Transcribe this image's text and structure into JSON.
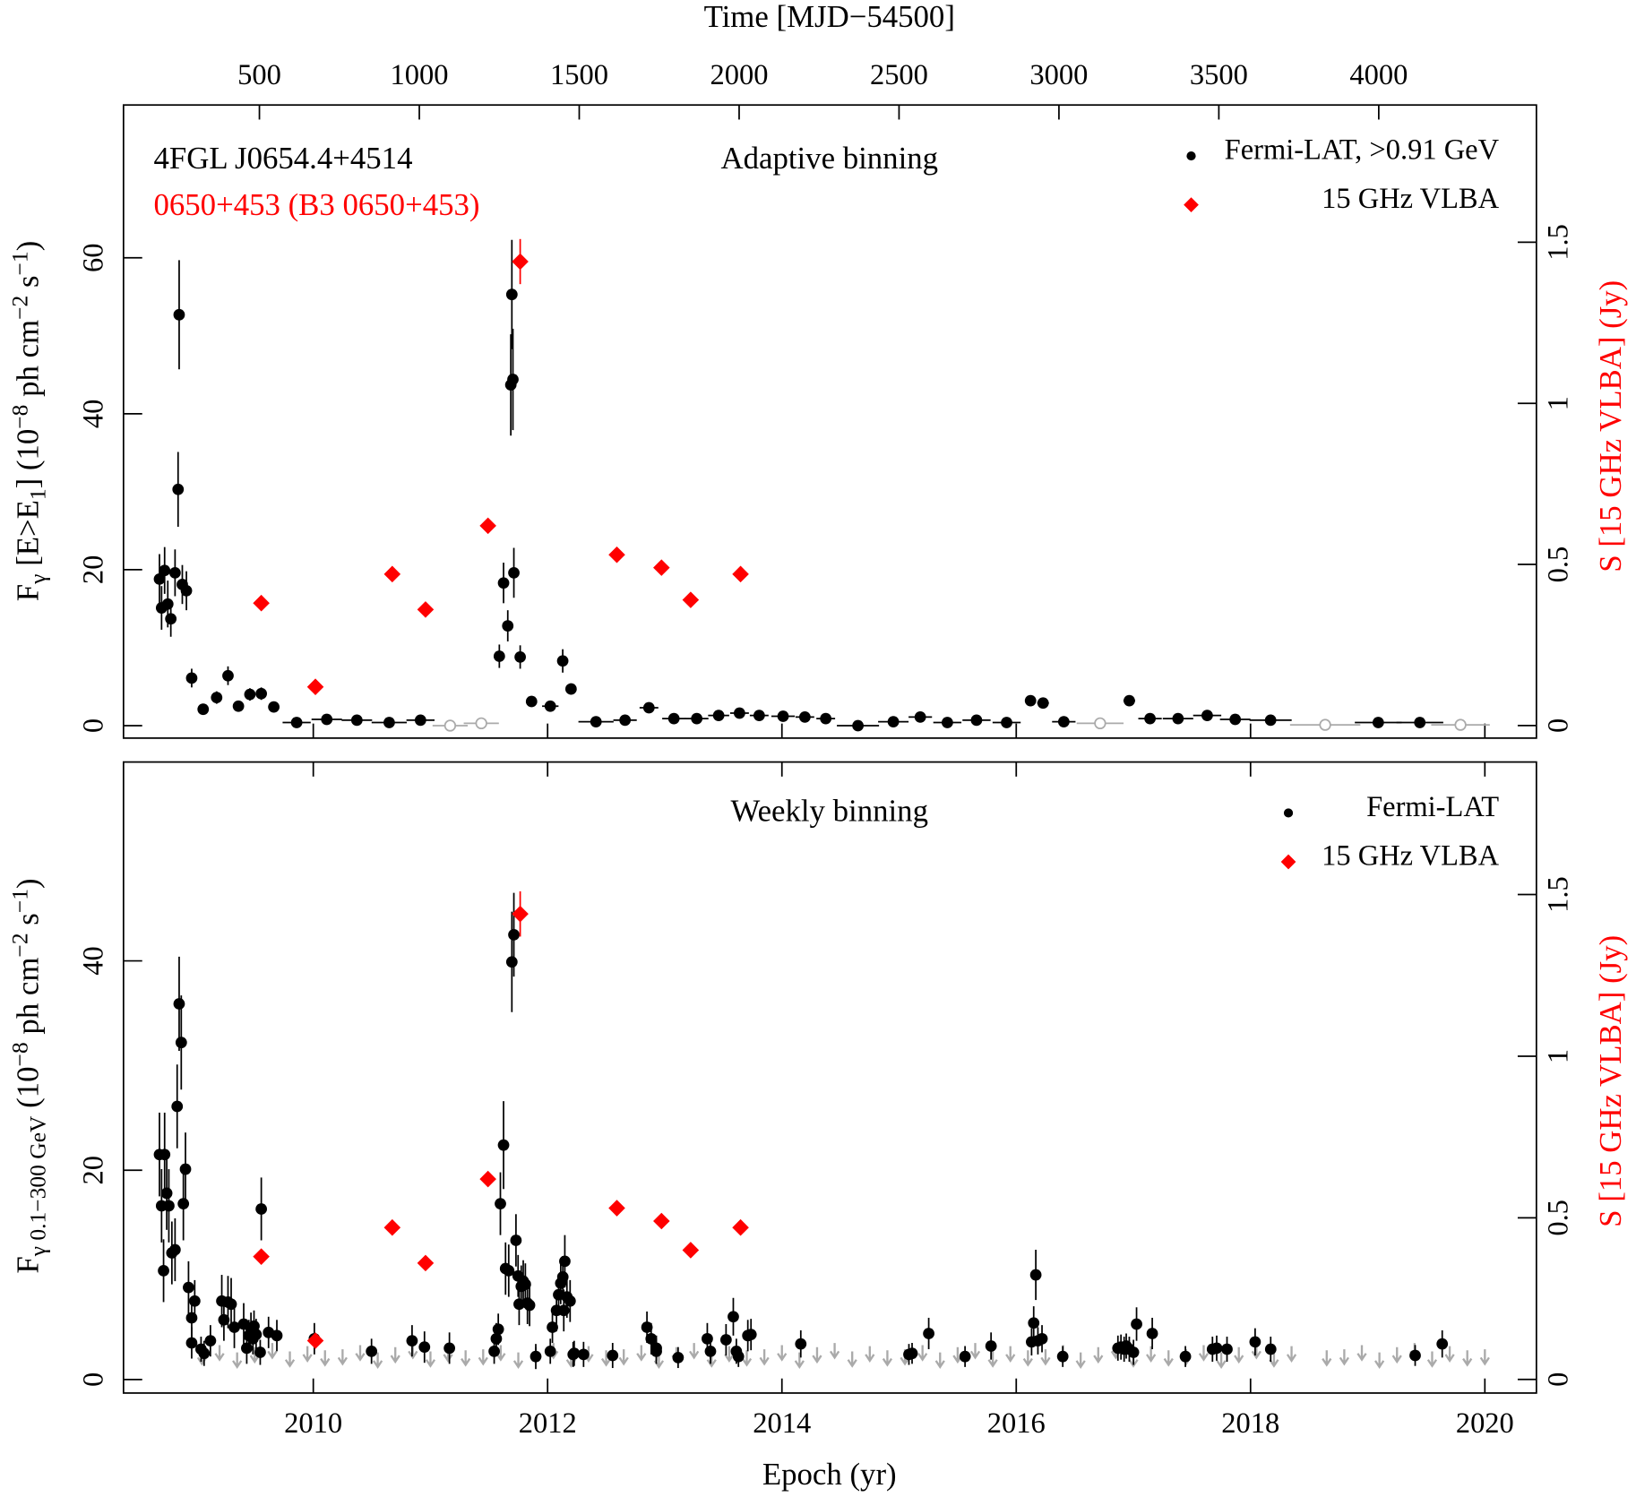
{
  "chart_data": [
    {
      "type": "scatter",
      "title": "Adaptive binning",
      "source_name": "4FGL J0654.4+4514",
      "source_alias": "0650+453 (B3 0650+453)",
      "x2label": "Time [MJD−54500]",
      "ylabel": [
        "F",
        "γ",
        " [E>E",
        "1",
        "] (10",
        "−8",
        " ph cm",
        "−2",
        " s",
        "−1",
        ")"
      ],
      "y2label": "S [15 GHz VLBA] (Jy)",
      "xlim": [
        2008.38,
        2020.44
      ],
      "xticks": [
        2010,
        2012,
        2014,
        2016,
        2018,
        2020
      ],
      "x2lim": [
        75,
        4493
      ],
      "x2ticks": [
        500,
        1000,
        1500,
        2000,
        2500,
        3000,
        3500,
        4000
      ],
      "ylim": [
        -1.6,
        79.6
      ],
      "yticks": [
        0,
        20,
        40,
        60
      ],
      "y2lim": [
        -0.039,
        1.926
      ],
      "y2ticks": [
        0,
        0.5,
        1,
        1.5
      ],
      "y2color": "#ff0000",
      "legend": "upper right",
      "series": [
        {
          "name": "Fermi-LAT, >0.91 GeV",
          "color": "#000000",
          "marker": "circle",
          "x": [
            2008.687,
            2008.705,
            2008.731,
            2008.758,
            2008.784,
            2008.82,
            2008.855,
            2008.846,
            2008.882,
            2008.917,
            2008.962,
            2009.06,
            2009.175,
            2009.272,
            2009.361,
            2009.459,
            2009.556,
            2009.663,
            2009.858,
            2010.115,
            2010.372,
            2010.648,
            2010.915,
            2011.588,
            2011.624,
            2011.66,
            2011.686,
            2011.695,
            2011.704,
            2011.712,
            2011.766,
            2011.863,
            2012.023,
            2012.129,
            2012.2,
            2012.413,
            2012.661,
            2012.865,
            2013.078,
            2013.273,
            2013.46,
            2013.638,
            2013.806,
            2014.01,
            2014.196,
            2014.374,
            2014.649,
            2014.951,
            2015.181,
            2015.412,
            2015.661,
            2015.918,
            2016.122,
            2016.229,
            2016.406,
            2016.965,
            2017.142,
            2017.381,
            2017.63,
            2017.869,
            2018.171,
            2019.09,
            2019.445
          ],
          "values": [
            18.8,
            15.1,
            19.9,
            15.6,
            13.7,
            19.6,
            52.7,
            30.3,
            18.1,
            17.3,
            6.1,
            2.1,
            3.6,
            6.4,
            2.5,
            4.0,
            4.1,
            2.4,
            0.4,
            0.8,
            0.7,
            0.4,
            0.7,
            8.9,
            18.3,
            12.8,
            43.7,
            55.3,
            44.4,
            19.6,
            8.8,
            3.1,
            2.5,
            8.3,
            4.7,
            0.5,
            0.7,
            2.3,
            0.9,
            0.9,
            1.3,
            1.6,
            1.3,
            1.2,
            1.1,
            0.9,
            0.0,
            0.5,
            1.1,
            0.4,
            0.7,
            0.4,
            3.2,
            2.9,
            0.5,
            3.2,
            0.9,
            0.9,
            1.3,
            0.8,
            0.7,
            0.4,
            0.4
          ],
          "errors": [
            3.2,
            2.8,
            3,
            3,
            2.3,
            3,
            7,
            4.8,
            2.5,
            2.5,
            1.2,
            0.6,
            0.8,
            1.2,
            0.7,
            0.8,
            0.8,
            0.6,
            0.2,
            0.2,
            0.2,
            0.15,
            0.2,
            1.5,
            2.6,
            2,
            6.5,
            7,
            6.5,
            3.2,
            1.5,
            0.7,
            0.5,
            1.5,
            0.7,
            0.2,
            0.2,
            0.4,
            0.2,
            0.2,
            0.3,
            0.3,
            0.3,
            0.3,
            0.3,
            0.3,
            0.1,
            0.2,
            0.3,
            0.2,
            0.2,
            0.2,
            0.6,
            0.6,
            0.2,
            0.6,
            0.3,
            0.3,
            0.3,
            0.3,
            0.2,
            0.1,
            0.1
          ],
          "xerr": [
            0.01,
            0.01,
            0.01,
            0.01,
            0.01,
            0.01,
            0.01,
            0.01,
            0.01,
            0.01,
            0.01,
            0.01,
            0.01,
            0.01,
            0.01,
            0.01,
            0.01,
            0.01,
            0.12,
            0.13,
            0.13,
            0.15,
            0.12,
            0.01,
            0.01,
            0.01,
            0.01,
            0.01,
            0.01,
            0.01,
            0.01,
            0.01,
            0.07,
            0.02,
            0.04,
            0.15,
            0.1,
            0.08,
            0.1,
            0.1,
            0.09,
            0.08,
            0.08,
            0.1,
            0.08,
            0.08,
            0.18,
            0.13,
            0.1,
            0.12,
            0.12,
            0.12,
            0.04,
            0.05,
            0.1,
            0.05,
            0.1,
            0.13,
            0.12,
            0.13,
            0.18,
            0.2,
            0.2
          ]
        },
        {
          "name": "15 GHz VLBA",
          "color": "#ff0000",
          "marker": "diamond",
          "axis": "y2",
          "x": [
            2009.556,
            2010.018,
            2010.674,
            2010.958,
            2011.491,
            2011.766,
            2012.591,
            2012.972,
            2013.221,
            2013.647
          ],
          "values": [
            0.38,
            0.12,
            0.47,
            0.36,
            0.62,
            1.44,
            0.53,
            0.49,
            0.39,
            0.47
          ],
          "errors": [
            0.01,
            0.01,
            0.01,
            0.01,
            0.02,
            0.07,
            0.01,
            0.01,
            0.01,
            0.01
          ]
        }
      ],
      "upper_limits": {
        "color": "#aaaaaa",
        "marker": "circle-open",
        "x": [
          2011.168,
          2011.434,
          2016.716,
          2018.637,
          2019.792
        ],
        "values": [
          0.0,
          0.3,
          0.3,
          0.1,
          0.1
        ],
        "xerr": [
          0.15,
          0.15,
          0.2,
          0.3,
          0.25
        ]
      }
    },
    {
      "type": "scatter",
      "title": "Weekly binning",
      "xlabel": "Epoch (yr)",
      "ylabel": [
        "F",
        "γ 0.1−300 GeV",
        " (10",
        "−8",
        " ph cm",
        "−2",
        " s",
        "−1",
        ")"
      ],
      "y2label": "S [15 GHz VLBA] (Jy)",
      "xlim": [
        2008.38,
        2020.44
      ],
      "xticks": [
        2010,
        2012,
        2014,
        2016,
        2018,
        2020
      ],
      "ylim": [
        -1.29,
        59.0
      ],
      "yticks": [
        0,
        20,
        40
      ],
      "y2lim": [
        -0.042,
        1.91
      ],
      "y2ticks": [
        0,
        0.5,
        1,
        1.5
      ],
      "y2color": "#ff0000",
      "legend": "upper right",
      "series": [
        {
          "name": "Fermi-LAT",
          "color": "#000000",
          "marker": "circle",
          "x": [
            2008.687,
            2008.705,
            2008.722,
            2008.731,
            2008.749,
            2008.767,
            2008.793,
            2008.82,
            2008.838,
            2008.855,
            2008.873,
            2008.891,
            2008.909,
            2008.935,
            2008.962,
            2008.962,
            2008.988,
            2009.042,
            2009.068,
            2009.122,
            2009.219,
            2009.237,
            2009.272,
            2009.299,
            2009.326,
            2009.406,
            2009.432,
            2009.45,
            2009.468,
            2009.485,
            2009.494,
            2009.512,
            2009.547,
            2009.556,
            2009.618,
            2009.689,
            2010.009,
            2010.497,
            2010.843,
            2010.949,
            2011.162,
            2011.544,
            2011.562,
            2011.579,
            2011.597,
            2011.624,
            2011.641,
            2011.668,
            2011.695,
            2011.712,
            2011.73,
            2011.748,
            2011.757,
            2011.775,
            2011.792,
            2011.81,
            2011.828,
            2011.846,
            2011.899,
            2012.023,
            2012.041,
            2012.076,
            2012.094,
            2012.112,
            2012.13,
            2012.138,
            2012.147,
            2012.165,
            2012.192,
            2012.218,
            2012.227,
            2012.307,
            2012.555,
            2012.848,
            2012.884,
            2012.928,
            2012.928,
            2013.114,
            2013.363,
            2013.39,
            2013.523,
            2013.585,
            2013.611,
            2013.629,
            2013.709,
            2013.736,
            2014.161,
            2015.084,
            2015.111,
            2015.253,
            2015.563,
            2015.785,
            2016.131,
            2016.149,
            2016.167,
            2016.185,
            2016.22,
            2016.397,
            2016.868,
            2016.894,
            2016.921,
            2016.939,
            2016.965,
            2017.001,
            2017.027,
            2017.161,
            2017.444,
            2017.675,
            2017.711,
            2017.799,
            2018.039,
            2018.172,
            2019.405,
            2019.636
          ],
          "values": [
            21.5,
            16.6,
            10.4,
            21.5,
            17.8,
            16.6,
            12.1,
            12.4,
            26.1,
            35.9,
            32.2,
            16.8,
            20.1,
            8.8,
            5.9,
            3.5,
            7.5,
            2.9,
            2.5,
            3.7,
            7.5,
            5.7,
            7.4,
            7.2,
            5.0,
            5.3,
            3.0,
            4.2,
            4.9,
            3.9,
            5.1,
            4.3,
            2.6,
            16.3,
            4.5,
            4.2,
            3.9,
            2.7,
            3.7,
            3.1,
            3.0,
            2.7,
            3.9,
            4.8,
            16.8,
            22.4,
            10.6,
            10.4,
            39.9,
            42.5,
            13.3,
            9.9,
            7.2,
            8.9,
            9.4,
            9.1,
            7.3,
            7.1,
            2.2,
            2.7,
            5.0,
            6.6,
            8.1,
            9.2,
            9.8,
            6.6,
            11.3,
            7.9,
            7.5,
            2.4,
            2.5,
            2.4,
            2.3,
            5.0,
            3.9,
            2.7,
            3.0,
            2.1,
            3.9,
            2.7,
            3.8,
            6.0,
            2.7,
            2.2,
            4.2,
            4.3,
            3.4,
            2.4,
            2.5,
            4.4,
            2.2,
            3.2,
            3.6,
            5.4,
            10.0,
            3.7,
            3.9,
            2.2,
            3.0,
            3.1,
            2.9,
            3.2,
            2.9,
            2.6,
            5.3,
            4.4,
            2.2,
            2.9,
            3.0,
            2.9,
            3.6,
            2.9,
            2.3,
            3.4
          ],
          "errors": [
            4,
            3.5,
            3,
            4,
            3.5,
            3.5,
            3,
            3,
            4,
            4.5,
            4.5,
            3.5,
            3.5,
            2.5,
            2,
            1.5,
            2,
            1.2,
            1.2,
            1.5,
            2.5,
            2,
            2.5,
            2.5,
            2,
            2,
            1.5,
            1.5,
            1.5,
            1.5,
            1.5,
            1.5,
            1.2,
            3,
            1.5,
            1.5,
            1.5,
            1.2,
            1.5,
            1.5,
            1.5,
            1.2,
            1.5,
            1.5,
            3,
            4.2,
            2.5,
            2.5,
            4.8,
            4,
            2.5,
            2,
            2,
            2,
            2,
            2,
            2,
            2,
            1.2,
            1.2,
            1.5,
            2,
            2,
            2,
            2,
            2,
            2.5,
            2,
            2,
            1.2,
            1.2,
            1.2,
            1.2,
            1.5,
            1.5,
            1.2,
            1.2,
            1,
            1.5,
            1.2,
            1.5,
            1.8,
            1.2,
            1,
            1.5,
            1.5,
            1.3,
            1,
            1,
            1.5,
            1,
            1.3,
            1.3,
            1.6,
            2.4,
            1.3,
            1.3,
            1,
            1.2,
            1.2,
            1.2,
            1.2,
            1.2,
            1.2,
            1.6,
            1.5,
            1,
            1.2,
            1.2,
            1.2,
            1.3,
            1.2,
            1,
            1.3
          ]
        },
        {
          "name": "15 GHz VLBA",
          "color": "#ff0000",
          "marker": "diamond",
          "axis": "y2",
          "x": [
            2009.556,
            2010.018,
            2010.674,
            2010.958,
            2011.491,
            2011.766,
            2012.591,
            2012.972,
            2013.221,
            2013.647
          ],
          "values": [
            0.38,
            0.12,
            0.47,
            0.36,
            0.62,
            1.44,
            0.53,
            0.49,
            0.4,
            0.47
          ],
          "errors": [
            0.01,
            0.01,
            0.01,
            0.01,
            0.02,
            0.07,
            0.01,
            0.01,
            0.01,
            0.01
          ]
        }
      ],
      "upper_limits": {
        "color": "#aaaaaa",
        "marker": "arrow",
        "x": [
          2009.05,
          2009.2,
          2009.35,
          2009.5,
          2009.65,
          2009.8,
          2009.95,
          2010.1,
          2010.25,
          2010.4,
          2010.55,
          2010.7,
          2010.85,
          2011.0,
          2011.15,
          2011.3,
          2011.45,
          2011.6,
          2011.75,
          2011.9,
          2012.05,
          2012.2,
          2012.35,
          2012.5,
          2012.65,
          2012.8,
          2012.95,
          2013.1,
          2013.25,
          2013.4,
          2013.55,
          2013.7,
          2013.85,
          2014.0,
          2014.15,
          2014.3,
          2014.45,
          2014.6,
          2014.75,
          2014.9,
          2015.05,
          2015.2,
          2015.35,
          2015.5,
          2015.65,
          2015.8,
          2015.95,
          2016.1,
          2016.25,
          2016.4,
          2016.55,
          2016.7,
          2016.85,
          2017.0,
          2017.15,
          2017.3,
          2017.45,
          2017.6,
          2017.75,
          2017.9,
          2018.05,
          2018.2,
          2018.35,
          2018.65,
          2018.8,
          2018.95,
          2019.1,
          2019.25,
          2019.4,
          2019.55,
          2019.7,
          2019.85,
          2020.0
        ],
        "values": [
          1.5,
          1.9,
          1.2,
          1.7,
          2.1,
          1.3,
          1.8,
          1.4,
          1.5,
          1.9,
          1.2,
          1.7,
          2.1,
          1.3,
          1.8,
          1.4,
          1.5,
          1.9,
          1.2,
          1.7,
          2.1,
          1.3,
          1.8,
          1.4,
          1.5,
          1.9,
          1.2,
          1.7,
          2.1,
          1.3,
          1.8,
          1.4,
          1.5,
          1.9,
          1.2,
          1.7,
          2.1,
          1.3,
          1.8,
          1.4,
          1.5,
          1.9,
          1.2,
          1.7,
          2.1,
          1.3,
          1.8,
          1.4,
          1.5,
          1.9,
          1.2,
          1.7,
          2.1,
          1.3,
          1.8,
          1.4,
          1.5,
          1.9,
          1.2,
          1.7,
          2.1,
          1.3,
          1.8,
          1.4,
          1.5,
          1.9,
          1.2,
          1.7,
          2.1,
          1.3,
          1.8,
          1.4,
          1.5
        ]
      }
    }
  ]
}
